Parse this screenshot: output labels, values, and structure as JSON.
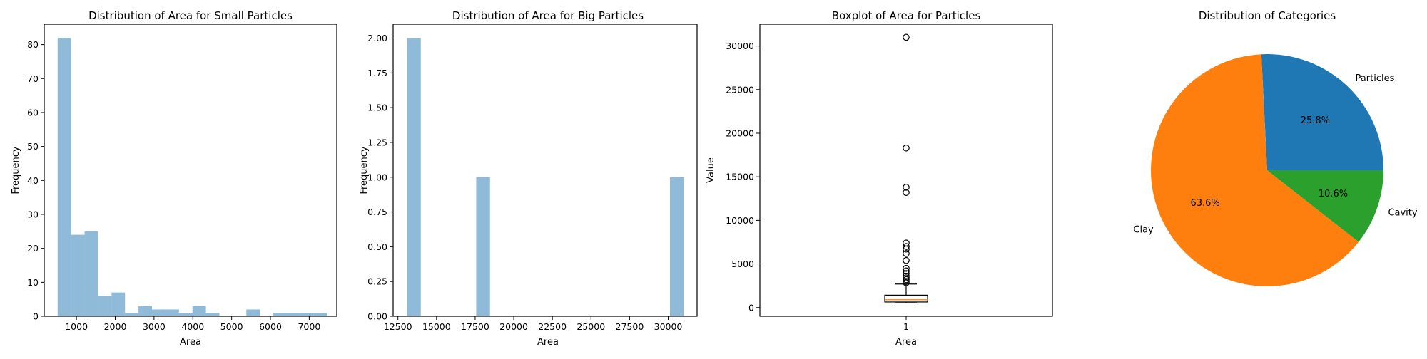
{
  "chart_data": [
    {
      "type": "bar",
      "title": "Distribution of Area for Small Particles",
      "xlabel": "Area",
      "ylabel": "Frequency",
      "xlim": [
        170,
        7710
      ],
      "ylim": [
        0,
        86
      ],
      "xticks": [
        1000,
        2000,
        3000,
        4000,
        5000,
        6000,
        7000
      ],
      "yticks": [
        0,
        10,
        20,
        30,
        40,
        50,
        60,
        70,
        80
      ],
      "bins": [
        {
          "x0": 515,
          "x1": 862,
          "value": 82
        },
        {
          "x0": 862,
          "x1": 1210,
          "value": 24
        },
        {
          "x0": 1210,
          "x1": 1557,
          "value": 25
        },
        {
          "x0": 1557,
          "x1": 1905,
          "value": 6
        },
        {
          "x0": 1905,
          "x1": 2252,
          "value": 7
        },
        {
          "x0": 2252,
          "x1": 2600,
          "value": 1
        },
        {
          "x0": 2600,
          "x1": 2947,
          "value": 3
        },
        {
          "x0": 2947,
          "x1": 3295,
          "value": 2
        },
        {
          "x0": 3295,
          "x1": 3642,
          "value": 2
        },
        {
          "x0": 3642,
          "x1": 3990,
          "value": 1
        },
        {
          "x0": 3990,
          "x1": 4337,
          "value": 3
        },
        {
          "x0": 4337,
          "x1": 4685,
          "value": 1
        },
        {
          "x0": 4685,
          "x1": 5032,
          "value": 0
        },
        {
          "x0": 5032,
          "x1": 5380,
          "value": 0
        },
        {
          "x0": 5380,
          "x1": 5727,
          "value": 2
        },
        {
          "x0": 5727,
          "x1": 6075,
          "value": 0
        },
        {
          "x0": 6075,
          "x1": 6422,
          "value": 1
        },
        {
          "x0": 6422,
          "x1": 6770,
          "value": 1
        },
        {
          "x0": 6770,
          "x1": 7117,
          "value": 1
        },
        {
          "x0": 7117,
          "x1": 7465,
          "value": 1
        }
      ],
      "bar_color": "#1f77b4",
      "bar_alpha": 0.5
    },
    {
      "type": "bar",
      "title": "Distribution of Area for Big Particles",
      "xlabel": "Area",
      "ylabel": "Frequency",
      "xlim": [
        12190,
        31870
      ],
      "ylim": [
        0,
        2.1
      ],
      "xticks": [
        12500,
        15000,
        17500,
        20000,
        22500,
        25000,
        27500,
        30000
      ],
      "ytick_labels": [
        "0.00",
        "0.25",
        "0.50",
        "0.75",
        "1.00",
        "1.25",
        "1.50",
        "1.75",
        "2.00"
      ],
      "bins": [
        {
          "x0": 13085,
          "x1": 13981,
          "value": 2
        },
        {
          "x0": 17567,
          "x1": 18463,
          "value": 1
        },
        {
          "x0": 30113,
          "x1": 31009,
          "value": 1
        }
      ],
      "bar_color": "#1f77b4",
      "bar_alpha": 0.5
    },
    {
      "type": "box",
      "title": "Boxplot of Area for Particles",
      "xlabel": "Area",
      "ylabel": "Value",
      "category": "1",
      "ylim": [
        -1000,
        32500
      ],
      "yticks": [
        0,
        5000,
        10000,
        15000,
        20000,
        25000,
        30000
      ],
      "box": {
        "whisker_low": 520,
        "q1": 640,
        "median": 900,
        "q3": 1420,
        "whisker_high": 2700
      },
      "outliers": [
        2850,
        3000,
        3200,
        3400,
        3600,
        3900,
        4200,
        4500,
        5400,
        6200,
        6700,
        7000,
        7400,
        13200,
        13800,
        18300,
        31000
      ],
      "box_edge": "#000000",
      "median_color": "#ff7f0e"
    },
    {
      "type": "pie",
      "title": "Distribution of Categories",
      "slices": [
        {
          "label": "Particles",
          "percent": 25.8,
          "pct_label": "25.8%",
          "color": "#1f77b4"
        },
        {
          "label": "Clay",
          "percent": 63.6,
          "pct_label": "63.6%",
          "color": "#ff7f0e"
        },
        {
          "label": "Cavity",
          "percent": 10.6,
          "pct_label": "10.6%",
          "color": "#2ca02c"
        }
      ],
      "start_angle_deg": 0,
      "direction": "counterclockwise"
    }
  ]
}
